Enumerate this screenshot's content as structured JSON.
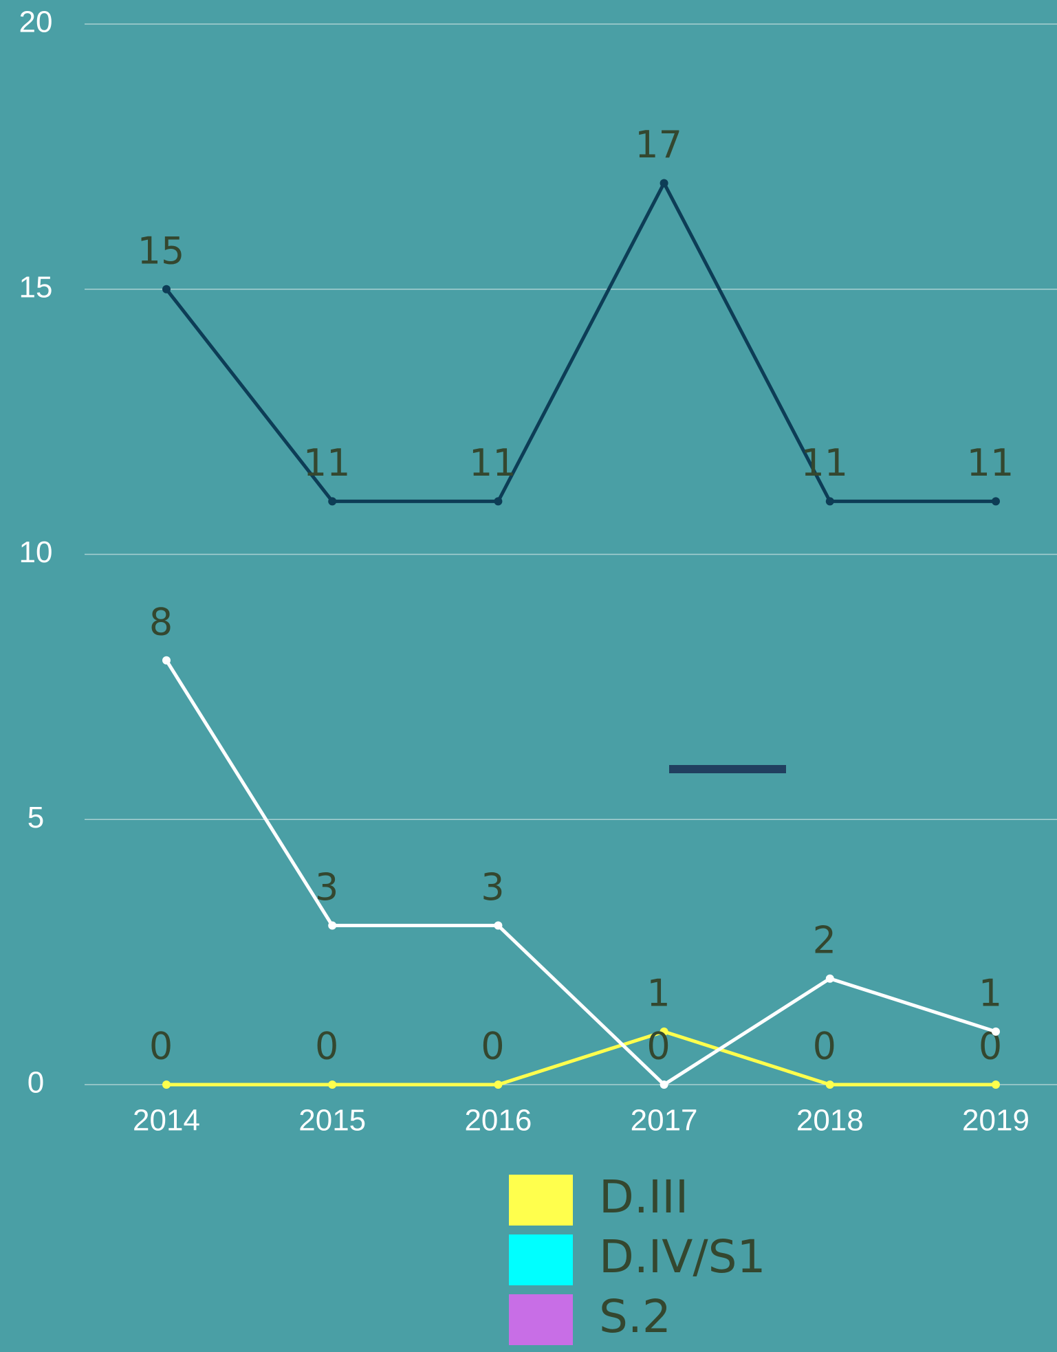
{
  "chart_data": {
    "type": "line",
    "categories": [
      "2014",
      "2015",
      "2016",
      "2017",
      "2018",
      "2019"
    ],
    "series": [
      {
        "name": "D.III",
        "color": "#ffff4d",
        "legend_color": "#ffff4d",
        "values": [
          0,
          0,
          0,
          1,
          0,
          0
        ]
      },
      {
        "name": "D.IV/S1",
        "color": "#ffffff",
        "legend_color": "#00ffff",
        "values": [
          8,
          3,
          3,
          0,
          2,
          1
        ]
      },
      {
        "name": "S.2",
        "color": "#0d3d56",
        "legend_color": "#c86ee6",
        "values": [
          15,
          11,
          11,
          17,
          11,
          11
        ]
      }
    ],
    "ylim": [
      0,
      20
    ],
    "yticks": [
      0,
      5,
      10,
      15,
      20
    ],
    "grid": true,
    "data_labels": true
  }
}
